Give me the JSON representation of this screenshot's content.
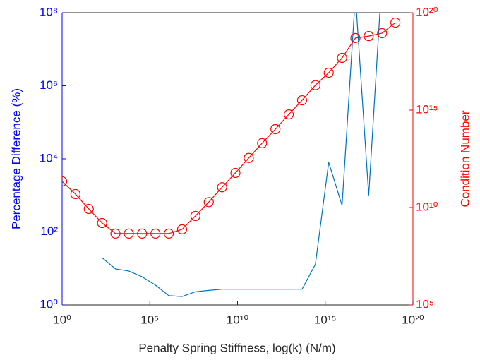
{
  "chart_data": {
    "type": "line",
    "xlabel": "Penalty Spring Stiffness, log(k) (N/m)",
    "ylabel": "Percentage Difference (%)",
    "y2label": "Condition Number",
    "xscale": "log",
    "yscale": "log",
    "y2scale": "log",
    "x": [
      1,
      5.75,
      33.1,
      191,
      1100,
      6310,
      36300,
      209000,
      1200000,
      6920000,
      39800000,
      229000000,
      1320000000,
      7590000000,
      43700000000,
      251000000000,
      1450000000000,
      8320000000000,
      47900000000000,
      275000000000000,
      1580000000000000,
      9120000000000000,
      52500000000000000,
      302000000000000000,
      1740000000000000000,
      10000000000000000000
    ],
    "series": [
      {
        "name": "Percentage Difference",
        "color": "#0072bd",
        "axis": "y",
        "values": [
          null,
          null,
          null,
          19.6,
          9.7,
          8.5,
          5.9,
          3.5,
          1.8,
          1.7,
          2.3,
          2.5,
          2.7,
          2.7,
          2.7,
          2.7,
          2.7,
          2.7,
          2.7,
          13,
          8000,
          530,
          300000000,
          1000,
          1000000000,
          null
        ]
      },
      {
        "name": "Condition Number",
        "color": "#ff0000",
        "axis": "y2",
        "marker": "circle",
        "values": [
          220000000000,
          49000000000,
          8500000000,
          1600000000,
          460000000,
          460000000,
          460000000,
          460000000,
          460000000,
          760000000,
          3700000000,
          19000000000,
          110000000000,
          600000000000,
          3500000000000,
          20000000000000,
          105000000000000,
          600000000000000,
          3200000000000000,
          19000000000000000,
          83000000000000000,
          480000000000000000,
          5000000000000000000,
          6300000000000000000,
          8900000000000000000,
          31000000000000000000
        ]
      }
    ],
    "xlim": [
      1,
      100000000000000000000
    ],
    "xticks": [
      {
        "value": 1,
        "label": "10⁰"
      },
      {
        "value": 100000,
        "label": "10⁵"
      },
      {
        "value": 10000000000,
        "label": "10¹⁰"
      },
      {
        "value": 1000000000000000,
        "label": "10¹⁵"
      },
      {
        "value": 100000000000000000000,
        "label": "10²⁰"
      }
    ],
    "ylim": [
      1,
      100000000
    ],
    "yticks": [
      {
        "value": 1,
        "label": "10⁰"
      },
      {
        "value": 100,
        "label": "10²"
      },
      {
        "value": 10000,
        "label": "10⁴"
      },
      {
        "value": 1000000,
        "label": "10⁶"
      },
      {
        "value": 100000000,
        "label": "10⁸"
      }
    ],
    "y2lim": [
      100000,
      100000000000000000000
    ],
    "y2ticks": [
      {
        "value": 100000,
        "label": "10⁵"
      },
      {
        "value": 10000000000,
        "label": "10¹⁰"
      },
      {
        "value": 1000000000000000,
        "label": "10¹⁵"
      },
      {
        "value": 100000000000000000000,
        "label": "10²⁰"
      }
    ],
    "ycolor": "#0000ff",
    "y2color": "#ff0000"
  }
}
